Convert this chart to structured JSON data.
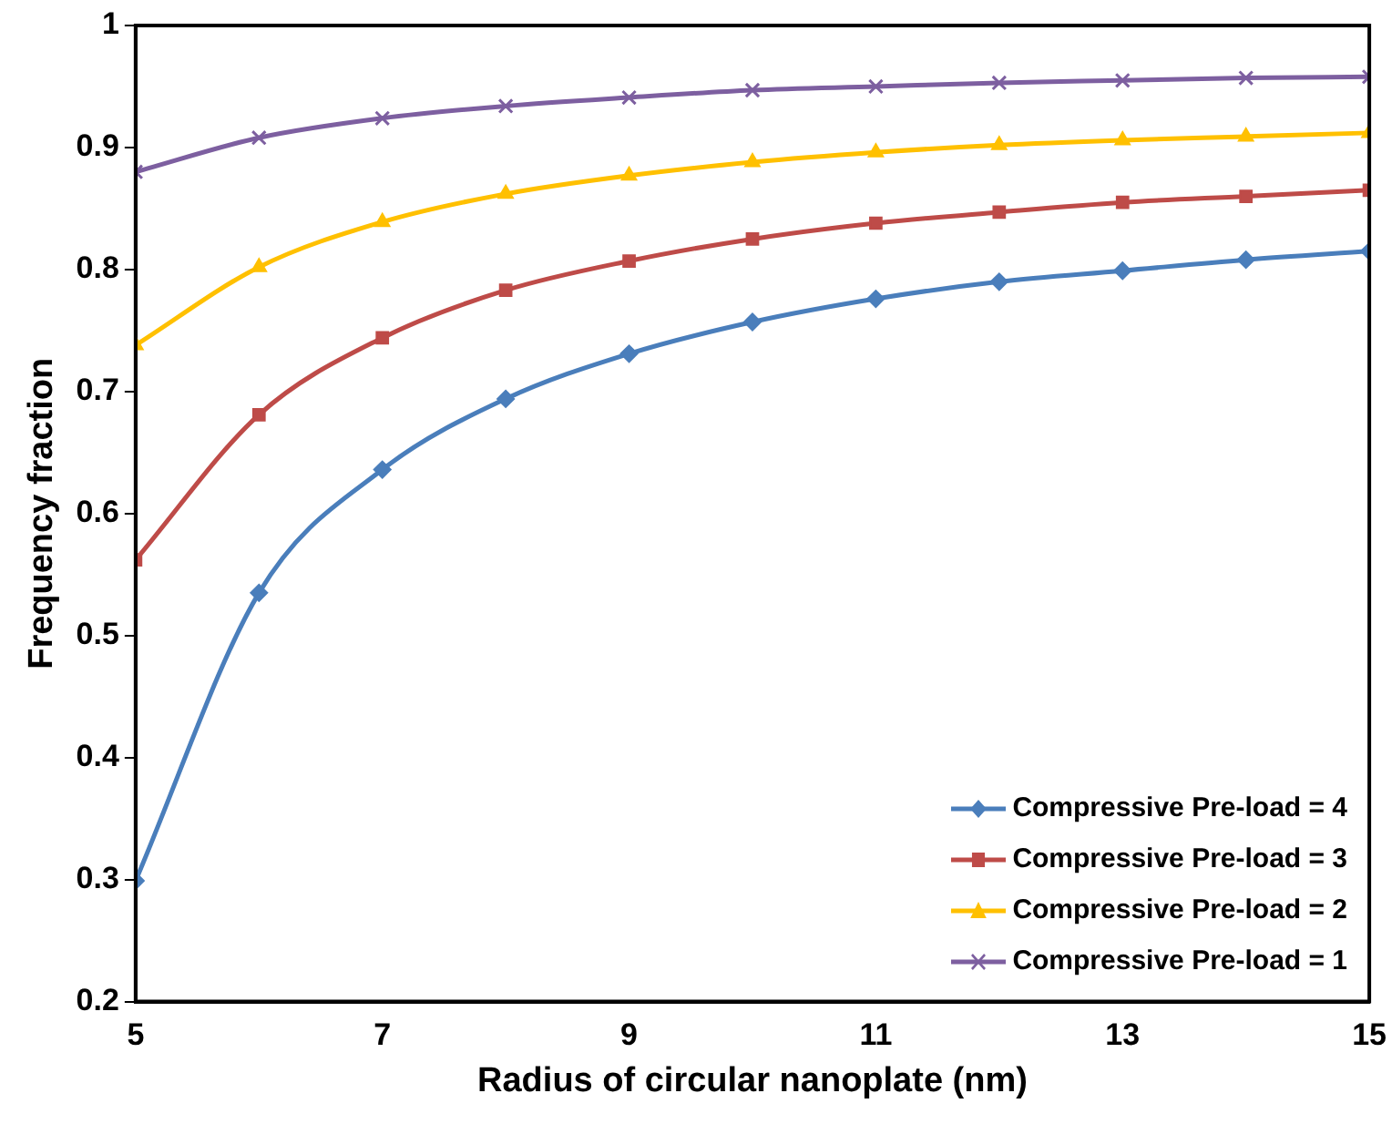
{
  "chart_data": {
    "type": "line",
    "xlabel": "Radius of circular nanoplate (nm)",
    "ylabel": "Frequency fraction",
    "x": [
      5,
      6,
      7,
      8,
      9,
      10,
      11,
      12,
      13,
      14,
      15
    ],
    "xlim": [
      5,
      15
    ],
    "xticks": [
      5,
      7,
      9,
      11,
      13,
      15
    ],
    "ylim": [
      0.2,
      1
    ],
    "yticks": [
      0.2,
      0.3,
      0.4,
      0.5,
      0.6,
      0.7,
      0.8,
      0.9,
      1
    ],
    "grid": false,
    "legend": "bottom right",
    "series": [
      {
        "name": "Compressive Pre-load = 4",
        "color": "#4a7ebb",
        "marker": "diamond",
        "values": [
          0.299,
          0.535,
          0.636,
          0.694,
          0.731,
          0.757,
          0.776,
          0.79,
          0.799,
          0.808,
          0.815
        ]
      },
      {
        "name": "Compressive Pre-load = 3",
        "color": "#be4b48",
        "marker": "square",
        "values": [
          0.562,
          0.681,
          0.744,
          0.783,
          0.807,
          0.825,
          0.838,
          0.847,
          0.855,
          0.86,
          0.865
        ]
      },
      {
        "name": "Compressive Pre-load = 2",
        "color": "#ffc000",
        "marker": "triangle",
        "values": [
          0.738,
          0.802,
          0.839,
          0.862,
          0.877,
          0.888,
          0.896,
          0.902,
          0.906,
          0.909,
          0.912
        ]
      },
      {
        "name": "Compressive Pre-load = 1",
        "color": "#7d5fa0",
        "marker": "cross",
        "values": [
          0.88,
          0.908,
          0.924,
          0.934,
          0.941,
          0.947,
          0.95,
          0.953,
          0.955,
          0.957,
          0.958
        ]
      }
    ]
  }
}
